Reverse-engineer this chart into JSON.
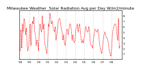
{
  "title": "Milwaukee Weather  Solar Radiation Avg per Day W/m2/minute",
  "values": [
    1.5,
    5.5,
    2.0,
    6.5,
    5.0,
    7.5,
    6.8,
    4.5,
    5.8,
    2.5,
    1.5,
    2.5,
    4.5,
    6.5,
    2.5,
    5.5,
    7.0,
    6.5,
    7.8,
    5.0,
    4.5,
    2.5,
    3.5,
    3.0,
    1.5,
    5.0,
    6.5,
    5.5,
    5.0,
    8.0,
    5.5,
    6.5,
    3.0,
    2.5,
    1.5,
    1.0,
    3.0,
    6.5,
    6.0,
    8.5,
    7.5,
    6.5,
    7.0,
    6.0,
    5.5,
    5.0,
    6.0,
    3.5,
    4.5,
    5.5,
    7.0,
    7.5,
    7.5,
    6.5,
    5.5,
    5.0,
    3.5,
    4.5,
    3.0,
    2.5,
    4.0,
    5.5,
    5.5,
    4.5,
    5.5,
    6.5,
    6.5,
    5.5,
    3.5,
    4.5,
    3.5,
    3.0,
    3.5,
    5.5,
    6.0,
    6.5,
    5.0,
    6.0,
    6.5,
    5.0,
    3.5,
    3.0,
    3.5,
    3.0,
    4.0,
    5.0,
    6.0,
    5.5,
    5.0,
    5.0,
    6.0,
    5.0,
    3.0,
    2.5,
    2.5,
    2.0,
    3.5,
    4.5,
    5.5,
    5.5,
    5.0,
    5.0,
    5.5,
    4.5,
    3.0,
    2.0,
    1.5,
    1.0,
    2.0,
    3.5,
    4.5,
    5.0,
    4.5,
    4.0,
    4.0,
    3.5,
    2.5,
    1.5,
    1.0,
    0.5,
    2.0,
    4.5,
    5.5,
    6.0,
    6.5,
    6.5,
    6.0,
    4.5,
    3.5,
    7.5,
    2.0,
    2.5
  ],
  "line_color": "#ff0000",
  "bg_color": "#ffffff",
  "grid_color": "#b0b0b0",
  "ylim": [
    0,
    9
  ],
  "ytick_values": [
    1,
    2,
    3,
    4,
    5,
    6,
    7,
    8
  ],
  "title_fontsize": 4.2,
  "tick_fontsize": 2.8,
  "year_labels": [
    "'98",
    "'99",
    "'00",
    "'01",
    "'02",
    "'03",
    "'04",
    "'05",
    "'06",
    "'07",
    "'08"
  ],
  "year_positions": [
    0,
    12,
    24,
    36,
    48,
    60,
    72,
    84,
    96,
    108,
    120
  ],
  "n_values": 132
}
